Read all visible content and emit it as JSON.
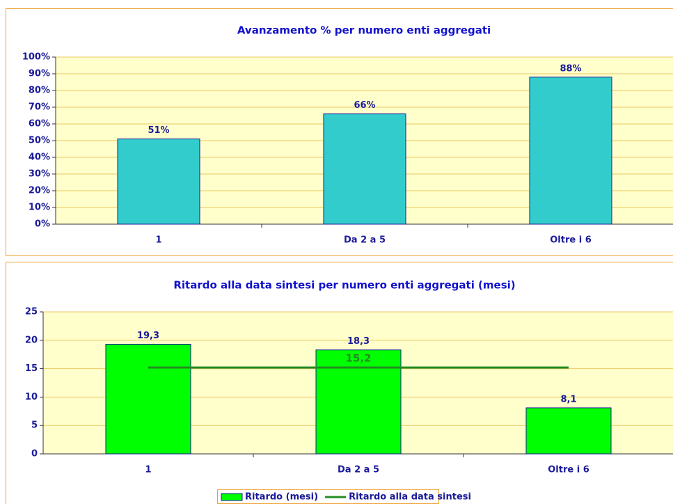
{
  "chart_data": [
    {
      "type": "bar",
      "title": "Avanzamento % per numero enti aggregati",
      "categories": [
        "1",
        "Da 2 a 5",
        "Oltre i 6"
      ],
      "series": [
        {
          "name": "Avanzamento %",
          "type": "bar",
          "color": "#33cccc",
          "values": [
            51,
            66,
            88
          ],
          "value_labels": [
            "51%",
            "66%",
            "88%"
          ]
        }
      ],
      "ylim": [
        0,
        100
      ],
      "yticks": [
        {
          "value": 0,
          "label": "0%"
        },
        {
          "value": 10,
          "label": "10%"
        },
        {
          "value": 20,
          "label": "20%"
        },
        {
          "value": 30,
          "label": "30%"
        },
        {
          "value": 40,
          "label": "40%"
        },
        {
          "value": 50,
          "label": "50%"
        },
        {
          "value": 60,
          "label": "60%"
        },
        {
          "value": 70,
          "label": "70%"
        },
        {
          "value": 80,
          "label": "80%"
        },
        {
          "value": 90,
          "label": "90%"
        },
        {
          "value": 100,
          "label": "100%"
        }
      ],
      "grid": true,
      "legend": false
    },
    {
      "type": "bar",
      "title": "Ritardo alla data sintesi per numero enti aggregati (mesi)",
      "categories": [
        "1",
        "Da 2 a 5",
        "Oltre i 6"
      ],
      "series": [
        {
          "name": "Ritardo (mesi)",
          "type": "bar",
          "color": "#00ff00",
          "values": [
            19.3,
            18.3,
            8.1
          ],
          "value_labels": [
            "19,3",
            "18,3",
            "8,1"
          ]
        },
        {
          "name": "Ritardo alla data sintesi",
          "type": "line",
          "color": "#238c23",
          "values": [
            15.2,
            15.2,
            15.2
          ],
          "value_labels": [
            null,
            "15,2",
            null
          ]
        }
      ],
      "ylim": [
        0,
        25
      ],
      "yticks": [
        0,
        5,
        10,
        15,
        20,
        25
      ],
      "grid": true,
      "legend": "bottom"
    }
  ]
}
